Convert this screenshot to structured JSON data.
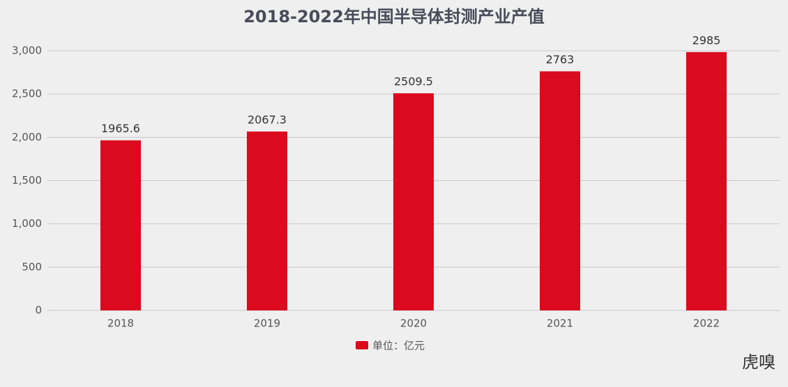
{
  "chart_data": {
    "type": "bar",
    "title": "2018-2022年中国半导体封测产业产值",
    "categories": [
      "2018",
      "2019",
      "2020",
      "2021",
      "2022"
    ],
    "series": [
      {
        "name": "单位：亿元",
        "color": "#dc0a1e",
        "values": [
          1965.6,
          2067.3,
          2509.5,
          2763,
          2985
        ]
      }
    ],
    "ylim": [
      0,
      3000
    ],
    "yticks": [
      0,
      500,
      {
        "value": 1000,
        "label": "1,000"
      },
      {
        "value": 1500,
        "label": "1,500"
      },
      {
        "value": 2000,
        "label": "2,000"
      },
      {
        "value": 2500,
        "label": "2,500"
      },
      {
        "value": 3000,
        "label": "3,000"
      }
    ],
    "grid": true,
    "legend": "bottom",
    "watermark": "虎嗅"
  }
}
